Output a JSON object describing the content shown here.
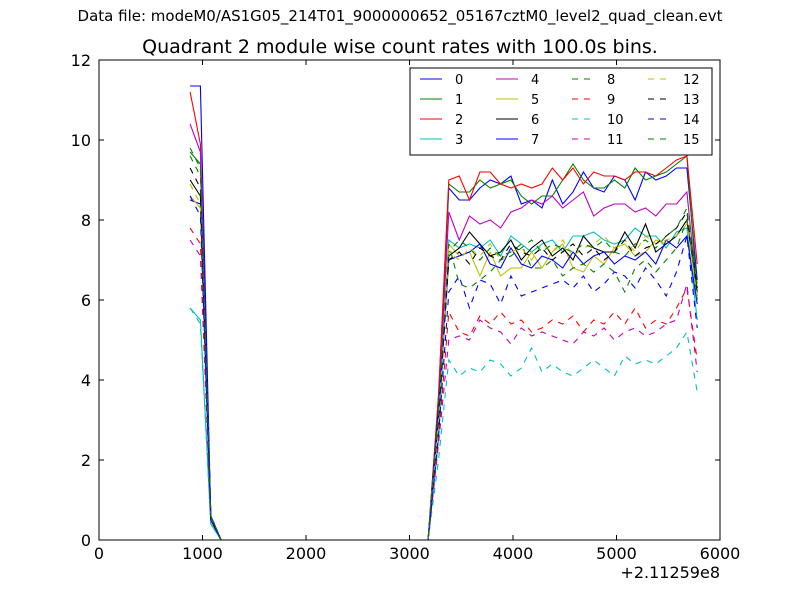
{
  "header": {
    "suptitle": "Data file: modeM0/AS1G05_214T01_9000000652_05167cztM0_level2_quad_clean.evt",
    "title": "Quadrant 2 module wise count rates with 100.0s bins."
  },
  "chart_data": {
    "type": "line",
    "title": "Quadrant 2 module wise count rates with 100.0s bins.",
    "xlabel": "",
    "ylabel": "",
    "x_offset_label": "+2.11259e8",
    "xlim": [
      0,
      6000
    ],
    "ylim": [
      0,
      12
    ],
    "xticks": [
      0,
      1000,
      2000,
      3000,
      4000,
      5000,
      6000
    ],
    "xtick_labels": [
      "0",
      "1000",
      "2000",
      "3000",
      "4000",
      "5000",
      "6000"
    ],
    "yticks": [
      0,
      2,
      4,
      6,
      8,
      10,
      12
    ],
    "ytick_labels": [
      "0",
      "2",
      "4",
      "6",
      "8",
      "10",
      "12"
    ],
    "grid": false,
    "legend_position": "top-right",
    "x": [
      880,
      980,
      1080,
      1180,
      3180,
      3280,
      3380,
      3480,
      3580,
      3680,
      3780,
      3880,
      3980,
      4080,
      4180,
      4280,
      4380,
      4480,
      4580,
      4680,
      4780,
      4880,
      4980,
      5080,
      5180,
      5280,
      5380,
      5480,
      5580,
      5680,
      5780
    ],
    "series": [
      {
        "name": "0",
        "color": "#0000ff",
        "dash": "solid",
        "values": [
          8.5,
          8.4,
          0.5,
          0,
          0,
          3.4,
          8.8,
          8.5,
          8.5,
          8.8,
          9.0,
          8.9,
          9.1,
          8.4,
          8.5,
          8.3,
          9.0,
          8.4,
          8.7,
          9.2,
          8.8,
          8.7,
          9.1,
          9.0,
          8.5,
          9.2,
          9.0,
          9.1,
          9.3,
          9.3,
          6.5
        ]
      },
      {
        "name": "1",
        "color": "#008000",
        "dash": "solid",
        "values": [
          9.7,
          9.4,
          0.6,
          0,
          0,
          3.6,
          8.9,
          8.7,
          8.7,
          9.0,
          8.8,
          8.9,
          9.0,
          8.6,
          8.4,
          8.6,
          8.6,
          9.0,
          9.4,
          9.0,
          8.8,
          8.8,
          9.0,
          8.8,
          9.3,
          9.0,
          9.1,
          9.2,
          9.4,
          9.6,
          6.1
        ]
      },
      {
        "name": "2",
        "color": "#ff0000",
        "dash": "solid",
        "values": [
          11.2,
          9.9,
          0.6,
          0,
          0,
          3.6,
          9.0,
          9.1,
          8.5,
          9.2,
          9.2,
          8.9,
          8.8,
          8.9,
          8.8,
          8.9,
          9.3,
          9.0,
          9.3,
          8.9,
          9.2,
          9.1,
          9.1,
          9.0,
          9.2,
          9.2,
          9.1,
          9.3,
          9.5,
          9.6,
          6.9
        ]
      },
      {
        "name": "3",
        "color": "#00bfbf",
        "dash": "solid",
        "values": [
          5.8,
          5.5,
          0.4,
          0,
          0,
          2.5,
          7.5,
          7.3,
          7.4,
          7.3,
          7.5,
          7.1,
          7.6,
          7.4,
          7.2,
          7.4,
          7.5,
          7.2,
          7.6,
          7.6,
          7.7,
          7.5,
          7.4,
          7.5,
          7.8,
          7.6,
          7.6,
          7.3,
          7.7,
          7.8,
          5.5
        ]
      },
      {
        "name": "4",
        "color": "#bf00bf",
        "dash": "solid",
        "values": [
          10.4,
          9.7,
          0.6,
          0,
          0,
          3.3,
          8.2,
          7.5,
          8.1,
          7.9,
          8.0,
          7.8,
          8.2,
          8.3,
          8.5,
          8.4,
          8.6,
          8.3,
          8.5,
          8.7,
          8.1,
          8.3,
          8.4,
          8.4,
          8.2,
          8.3,
          8.1,
          8.4,
          8.4,
          8.7,
          6.1
        ]
      },
      {
        "name": "5",
        "color": "#bfbf00",
        "dash": "solid",
        "values": [
          8.6,
          8.3,
          0.5,
          0,
          0,
          3.0,
          7.4,
          7.1,
          7.2,
          6.6,
          7.2,
          6.6,
          6.8,
          6.8,
          7.2,
          6.8,
          7.2,
          7.4,
          6.8,
          6.7,
          7.1,
          6.9,
          7.3,
          7.4,
          7.1,
          7.2,
          7.5,
          7.4,
          7.6,
          8.0,
          6.3
        ]
      },
      {
        "name": "6",
        "color": "#000000",
        "dash": "solid",
        "values": [
          9.0,
          8.6,
          0.5,
          0,
          0,
          3.1,
          7.1,
          7.3,
          7.7,
          7.4,
          7.1,
          7.2,
          7.5,
          7.0,
          7.3,
          7.5,
          7.1,
          7.3,
          7.0,
          7.6,
          7.3,
          7.2,
          7.2,
          7.7,
          7.3,
          7.9,
          7.2,
          7.4,
          7.6,
          8.0,
          6.2
        ]
      },
      {
        "name": "7",
        "color": "#0000ff",
        "dash": "solid",
        "values": [
          11.35,
          11.35,
          0.6,
          0,
          0,
          3.3,
          7.0,
          7.1,
          7.2,
          7.4,
          6.9,
          6.8,
          7.3,
          6.9,
          6.8,
          7.1,
          7.0,
          6.8,
          7.2,
          6.9,
          7.1,
          7.2,
          6.9,
          7.1,
          7.0,
          7.2,
          6.9,
          7.5,
          7.3,
          7.6,
          5.9
        ]
      },
      {
        "name": "8",
        "color": "#008000",
        "dash": "dashed",
        "values": [
          9.8,
          9.3,
          0.6,
          0,
          0,
          3.0,
          7.2,
          7.5,
          7.3,
          7.0,
          7.3,
          7.1,
          7.2,
          7.4,
          6.8,
          6.8,
          7.0,
          6.6,
          6.8,
          6.9,
          6.7,
          6.9,
          6.7,
          6.2,
          6.8,
          7.0,
          6.7,
          7.0,
          7.3,
          8.0,
          6.4
        ]
      },
      {
        "name": "9",
        "color": "#ff0000",
        "dash": "dashed",
        "values": [
          7.8,
          7.4,
          0.5,
          0,
          0,
          2.5,
          5.7,
          5.2,
          5.1,
          5.6,
          5.4,
          5.7,
          5.4,
          5.5,
          5.2,
          5.3,
          5.5,
          5.4,
          5.6,
          5.2,
          5.5,
          5.4,
          5.7,
          5.4,
          5.8,
          5.3,
          5.5,
          5.4,
          5.8,
          6.3,
          4.5
        ]
      },
      {
        "name": "10",
        "color": "#00bfbf",
        "dash": "dashed",
        "values": [
          5.8,
          5.4,
          0.4,
          0,
          0,
          2.0,
          4.5,
          4.1,
          4.3,
          4.2,
          4.5,
          4.4,
          4.1,
          4.3,
          4.8,
          4.2,
          4.4,
          4.2,
          4.1,
          4.3,
          4.5,
          4.3,
          4.1,
          4.6,
          4.4,
          4.5,
          4.4,
          4.6,
          4.8,
          5.2,
          3.7
        ]
      },
      {
        "name": "11",
        "color": "#bf00bf",
        "dash": "dashed",
        "values": [
          7.5,
          7.1,
          0.5,
          0,
          0,
          2.4,
          5.0,
          5.1,
          5.0,
          5.5,
          5.3,
          5.2,
          4.9,
          5.3,
          5.1,
          5.2,
          5.1,
          5.0,
          4.9,
          5.2,
          5.1,
          5.3,
          5.0,
          5.2,
          5.3,
          5.1,
          5.2,
          5.4,
          5.5,
          6.4,
          4.2
        ]
      },
      {
        "name": "12",
        "color": "#bfbf00",
        "dash": "dashed",
        "values": [
          8.9,
          8.4,
          0.5,
          0,
          0,
          3.0,
          7.2,
          7.0,
          7.3,
          7.1,
          7.4,
          7.0,
          7.2,
          7.3,
          7.0,
          7.4,
          7.2,
          7.5,
          7.1,
          7.3,
          7.4,
          7.6,
          7.3,
          7.5,
          7.2,
          7.6,
          7.4,
          7.5,
          7.6,
          7.9,
          6.1
        ]
      },
      {
        "name": "13",
        "color": "#000000",
        "dash": "dashed",
        "values": [
          9.3,
          8.8,
          0.5,
          0,
          0,
          3.0,
          7.0,
          7.2,
          6.9,
          7.3,
          7.1,
          7.0,
          7.4,
          7.2,
          7.1,
          7.3,
          7.0,
          7.2,
          7.4,
          7.1,
          7.3,
          7.0,
          7.2,
          7.5,
          7.1,
          7.3,
          7.4,
          7.6,
          7.8,
          8.2,
          6.3
        ]
      },
      {
        "name": "14",
        "color": "#0000ff",
        "dash": "dashed",
        "values": [
          8.6,
          8.1,
          0.5,
          0,
          0,
          2.6,
          6.2,
          6.6,
          5.8,
          6.5,
          6.4,
          5.9,
          6.6,
          6.1,
          6.2,
          6.3,
          6.4,
          6.5,
          6.3,
          6.6,
          6.2,
          6.4,
          6.7,
          6.6,
          6.3,
          6.8,
          6.5,
          6.1,
          6.7,
          7.6,
          5.3
        ]
      },
      {
        "name": "15",
        "color": "#008000",
        "dash": "dashed",
        "values": [
          9.6,
          9.1,
          0.6,
          0,
          0,
          3.2,
          7.4,
          6.4,
          6.3,
          6.5,
          6.7,
          7.0,
          7.1,
          7.3,
          7.5,
          7.2,
          7.4,
          7.3,
          7.2,
          7.4,
          7.3,
          7.5,
          7.2,
          7.1,
          7.4,
          7.5,
          7.3,
          7.6,
          7.8,
          8.3,
          6.0
        ]
      }
    ]
  }
}
